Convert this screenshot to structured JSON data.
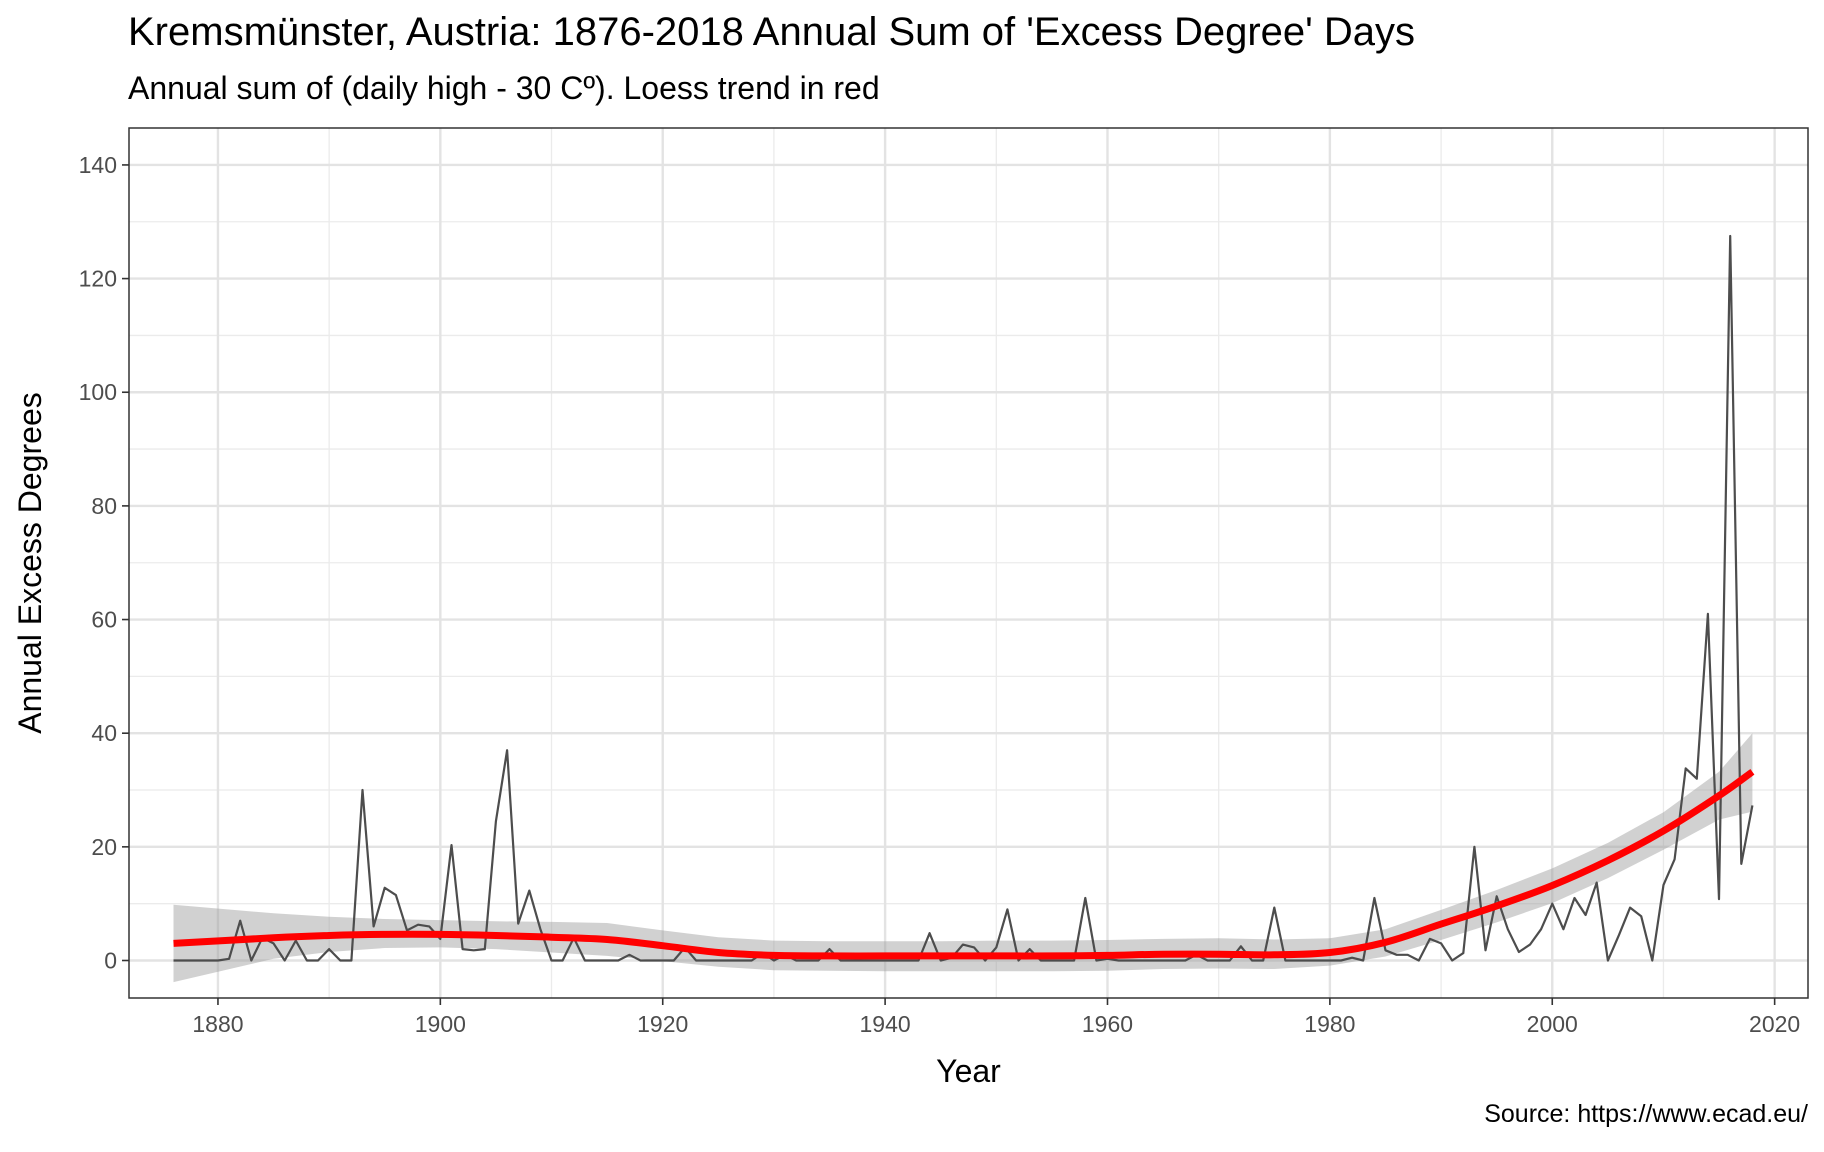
{
  "chart_data": {
    "type": "line",
    "title": "Kremsmünster, Austria: 1876-2018 Annual Sum of 'Excess Degree' Days",
    "subtitle": "Annual sum of (daily high - 30 Cº). Loess trend in red",
    "caption": "Source: https://www.ecad.eu/",
    "xlabel": "Year",
    "ylabel": "Annual Excess Degrees",
    "xlim": [
      1872,
      2023
    ],
    "ylim": [
      -6.6,
      146.5
    ],
    "x_ticks": [
      1880,
      1900,
      1920,
      1940,
      1960,
      1980,
      2000,
      2020
    ],
    "y_ticks": [
      0,
      20,
      40,
      60,
      80,
      100,
      120,
      140
    ],
    "grid": true,
    "legend": "none",
    "series": [
      {
        "color": "#4d4d4d",
        "x": [
          1876,
          1877,
          1878,
          1879,
          1880,
          1881,
          1882,
          1883,
          1884,
          1885,
          1886,
          1887,
          1888,
          1889,
          1890,
          1891,
          1892,
          1893,
          1894,
          1895,
          1896,
          1897,
          1898,
          1899,
          1900,
          1901,
          1902,
          1903,
          1904,
          1905,
          1906,
          1907,
          1908,
          1909,
          1910,
          1911,
          1912,
          1913,
          1914,
          1915,
          1916,
          1917,
          1918,
          1919,
          1920,
          1921,
          1922,
          1923,
          1924,
          1925,
          1926,
          1927,
          1928,
          1929,
          1930,
          1931,
          1932,
          1933,
          1934,
          1935,
          1936,
          1937,
          1938,
          1939,
          1940,
          1941,
          1942,
          1943,
          1944,
          1945,
          1946,
          1947,
          1948,
          1949,
          1950,
          1951,
          1952,
          1953,
          1954,
          1955,
          1956,
          1957,
          1958,
          1959,
          1960,
          1961,
          1962,
          1963,
          1964,
          1965,
          1966,
          1967,
          1968,
          1969,
          1970,
          1971,
          1972,
          1973,
          1974,
          1975,
          1976,
          1977,
          1978,
          1979,
          1980,
          1981,
          1982,
          1983,
          1984,
          1985,
          1986,
          1987,
          1988,
          1989,
          1990,
          1991,
          1992,
          1993,
          1994,
          1995,
          1996,
          1997,
          1998,
          1999,
          2000,
          2001,
          2002,
          2003,
          2004,
          2005,
          2006,
          2007,
          2008,
          2009,
          2010,
          2011,
          2012,
          2013,
          2014,
          2015,
          2016,
          2017,
          2018
        ],
        "values": [
          0,
          0,
          0,
          0,
          0,
          0.3,
          7,
          0,
          4,
          3,
          0,
          3.5,
          0,
          0,
          2,
          0,
          0,
          30,
          6,
          12.8,
          11.5,
          5.3,
          6.3,
          6,
          3.8,
          20.3,
          2,
          1.8,
          2,
          24.5,
          37,
          6.5,
          12.3,
          5.5,
          0,
          0,
          4,
          0,
          0,
          0,
          0,
          1,
          0,
          0,
          0,
          0,
          2.3,
          0,
          0,
          0,
          0,
          0,
          0,
          1.3,
          0,
          1,
          0,
          0,
          0,
          2,
          0,
          0,
          0,
          0,
          0,
          0,
          0,
          0,
          4.8,
          0,
          0.5,
          2.8,
          2.3,
          0,
          2.3,
          9,
          0,
          2,
          0,
          0,
          0,
          0,
          11,
          0,
          0.3,
          0,
          0,
          0,
          0,
          0,
          0,
          0,
          1,
          0,
          0,
          0,
          2.5,
          0,
          0,
          9.3,
          0,
          0,
          0,
          0,
          0,
          0,
          0.5,
          0,
          11,
          1.8,
          1,
          1,
          0,
          3.8,
          3,
          0,
          1.3,
          20,
          1.8,
          11.3,
          5.5,
          1.5,
          2.8,
          5.5,
          10,
          5.5,
          11,
          8,
          13.7,
          0,
          4.5,
          9.3,
          7.8,
          0,
          13.3,
          17.8,
          33.8,
          32,
          61,
          10.8,
          127.5,
          17,
          27.3
        ]
      },
      {
        "color": "#ff0000",
        "x": [
          1876,
          1885,
          1890,
          1895,
          1900,
          1905,
          1910,
          1915,
          1920,
          1925,
          1930,
          1935,
          1940,
          1945,
          1950,
          1955,
          1960,
          1965,
          1970,
          1975,
          1980,
          1985,
          1990,
          1995,
          2000,
          2005,
          2010,
          2015,
          2018
        ],
        "values": [
          3,
          4,
          4.4,
          4.6,
          4.6,
          4.4,
          4.1,
          3.7,
          2.6,
          1.4,
          0.9,
          0.8,
          0.8,
          0.8,
          0.8,
          0.8,
          0.9,
          1.1,
          1.1,
          1,
          1.4,
          3.2,
          6.4,
          9.6,
          13.2,
          17.6,
          22.8,
          29,
          33.2
        ],
        "ci_lower": [
          -3.8,
          0.3,
          1.5,
          2.2,
          2.3,
          2,
          1.4,
          0.8,
          -0.1,
          -1.1,
          -1.7,
          -1.8,
          -1.9,
          -1.9,
          -1.9,
          -1.9,
          -1.8,
          -1.5,
          -1.4,
          -1.5,
          -0.9,
          0.7,
          3.6,
          6.7,
          10.1,
          14.5,
          19.5,
          24.8,
          26.2
        ],
        "ci_upper": [
          9.8,
          8.3,
          7.7,
          7.3,
          7.1,
          6.9,
          6.8,
          6.6,
          5.3,
          4.1,
          3.5,
          3.4,
          3.4,
          3.4,
          3.5,
          3.5,
          3.6,
          3.8,
          3.9,
          3.7,
          3.9,
          5.5,
          8.9,
          12.4,
          16.2,
          20.7,
          26.1,
          33.2,
          40
        ]
      }
    ]
  }
}
